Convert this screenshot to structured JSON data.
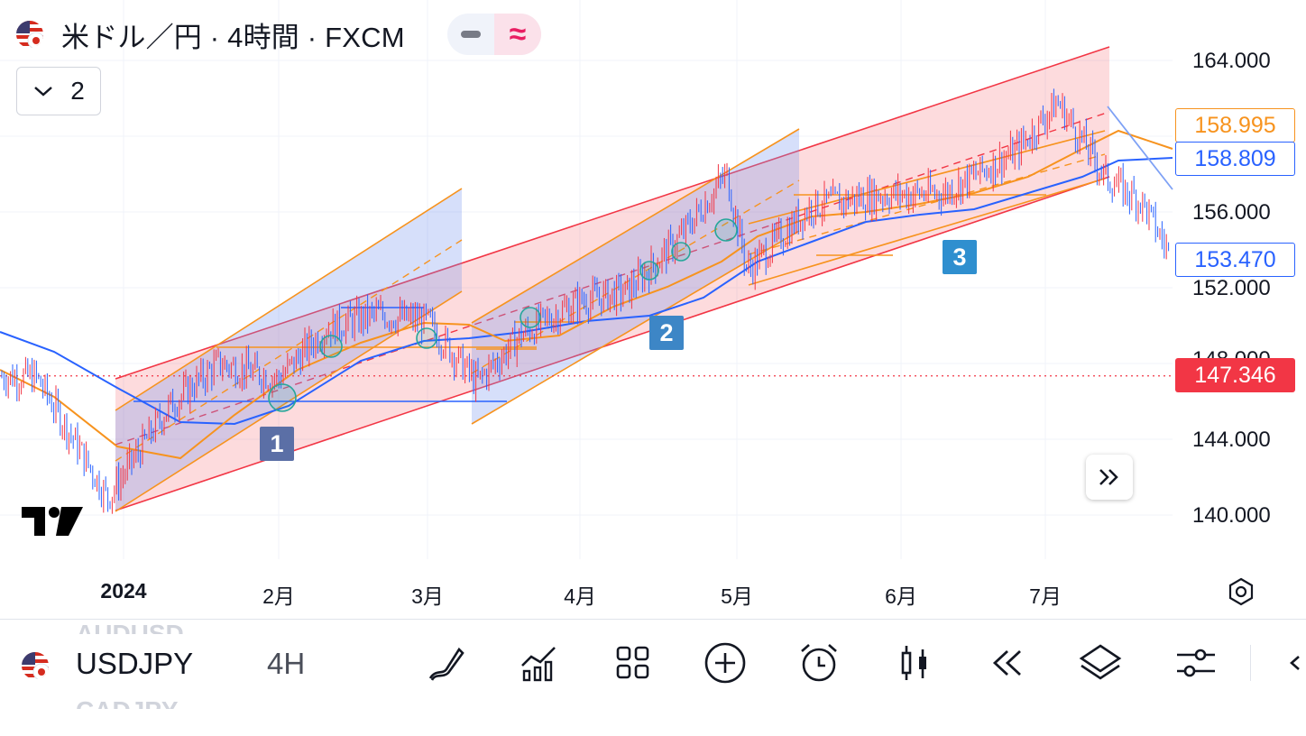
{
  "header": {
    "title": "米ドル／円 · 4時間 · FXCM",
    "indicator_collapse_count": "2",
    "pill_left_symbol": "−",
    "pill_right_symbol": "≈"
  },
  "price_axis": {
    "ticks": [
      "164.000",
      "156.000",
      "152.000",
      "148.000",
      "144.000",
      "140.000"
    ],
    "labels": [
      {
        "text": "158.995",
        "color": "#f7931e",
        "style": "outline"
      },
      {
        "text": "158.809",
        "color": "#2962ff",
        "style": "outline"
      },
      {
        "text": "153.470",
        "color": "#2962ff",
        "style": "outline"
      },
      {
        "text": "147.346",
        "color": "#f23645",
        "style": "filled"
      }
    ]
  },
  "time_axis": {
    "labels": [
      "2024",
      "2月",
      "3月",
      "4月",
      "5月",
      "6月",
      "7月"
    ]
  },
  "markers": [
    "1",
    "2",
    "3"
  ],
  "chart_data": {
    "type": "candlestick",
    "symbol": "USDJPY",
    "interval": "4H",
    "last_price": 147.346,
    "ylim": [
      138,
      165
    ],
    "series": [
      {
        "x": [
          "2023-12-10",
          "2023-12-20",
          "2023-12-28",
          "2024-01-10",
          "2024-01-20",
          "2024-02-01",
          "2024-02-10",
          "2024-02-20",
          "2024-03-01",
          "2024-03-11",
          "2024-03-20",
          "2024-04-01",
          "2024-04-10",
          "2024-04-20",
          "2024-04-29",
          "2024-05-03",
          "2024-05-15",
          "2024-05-28",
          "2024-06-10",
          "2024-06-25",
          "2024-07-03",
          "2024-07-11",
          "2024-07-17",
          "2024-07-22"
        ],
        "values": [
          147.3,
          143.8,
          140.9,
          145.7,
          148.0,
          147.2,
          149.8,
          150.6,
          150.2,
          147.0,
          149.5,
          151.3,
          151.8,
          154.6,
          158.0,
          152.9,
          156.3,
          156.9,
          157.0,
          159.2,
          161.8,
          157.8,
          156.5,
          153.5
        ]
      }
    ],
    "indicator_values": {
      "orange_ma": 158.995,
      "blue_ma": 158.809,
      "blue_level": 153.47
    }
  },
  "toolbar": {
    "symbol": "USDJPY",
    "interval": "4H",
    "ghost_above": "AUDUSD",
    "ghost_below": "CADJPY",
    "icons": [
      "pen-icon",
      "indicators-icon",
      "apps-grid-icon",
      "add-icon",
      "alarm-icon",
      "candle-icon",
      "replay-icon",
      "layers-icon",
      "settings-icon",
      "back-icon"
    ]
  }
}
